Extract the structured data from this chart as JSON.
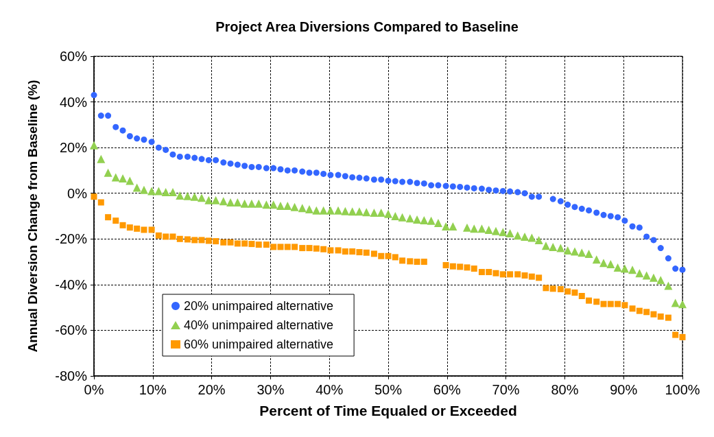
{
  "chart_data": {
    "type": "scatter",
    "title": "Project Area Diversions Compared to Baseline",
    "xlabel": "Percent of Time Equaled or Exceeded",
    "ylabel": "Annual Diversion Change from Baseline (%)",
    "xlim": [
      0,
      100
    ],
    "xticks": [
      {
        "value": 0,
        "label": "0%"
      },
      {
        "value": 10,
        "label": "10%"
      },
      {
        "value": 20,
        "label": "20%"
      },
      {
        "value": 30,
        "label": "30%"
      },
      {
        "value": 40,
        "label": "40%"
      },
      {
        "value": 50,
        "label": "50%"
      },
      {
        "value": 60,
        "label": "60%"
      },
      {
        "value": 70,
        "label": "70%"
      },
      {
        "value": 80,
        "label": "80%"
      },
      {
        "value": 90,
        "label": "90%"
      },
      {
        "value": 100,
        "label": "100%"
      }
    ],
    "ylim": [
      -80,
      60
    ],
    "yticks": [
      {
        "value": -80,
        "label": "-80%"
      },
      {
        "value": -60,
        "label": "-60%"
      },
      {
        "value": -40,
        "label": "-40%"
      },
      {
        "value": -20,
        "label": "-20%"
      },
      {
        "value": 0,
        "label": "0%"
      },
      {
        "value": 20,
        "label": "20%"
      },
      {
        "value": 40,
        "label": "40%"
      },
      {
        "value": 60,
        "label": "60%"
      }
    ],
    "grid": true,
    "legend": "bottom left",
    "series": [
      {
        "name": "20% unimpaired alternative",
        "color": "#3366ff",
        "marker": "circle",
        "x": [
          0,
          1.2,
          2.4,
          3.7,
          4.9,
          6.1,
          7.3,
          8.5,
          9.8,
          11,
          12.2,
          13.4,
          14.6,
          15.9,
          17.1,
          18.3,
          19.5,
          20.7,
          22,
          23.2,
          24.4,
          25.6,
          26.8,
          28,
          29.3,
          30.5,
          31.7,
          32.9,
          34.1,
          35.4,
          36.6,
          37.8,
          39,
          40.2,
          41.5,
          42.7,
          43.9,
          45.1,
          46.3,
          47.6,
          48.8,
          50,
          51.2,
          52.4,
          53.7,
          54.9,
          56.1,
          57.3,
          58.5,
          59.8,
          61,
          62.2,
          63.4,
          64.6,
          65.9,
          67.1,
          68.3,
          69.5,
          70.7,
          72,
          73.2,
          74.4,
          75.6,
          78,
          79.3,
          80.5,
          81.7,
          82.9,
          84.1,
          85.4,
          86.6,
          87.8,
          89,
          90.2,
          91.5,
          92.7,
          93.9,
          95.1,
          96.3,
          97.6,
          98.8,
          100
        ],
        "values": [
          43,
          34,
          34,
          29,
          27.5,
          25,
          24,
          23.5,
          22.5,
          20,
          19,
          17,
          16,
          16,
          15.5,
          15,
          14.5,
          14.5,
          13.5,
          13,
          12.5,
          12,
          11.5,
          11.5,
          11,
          11,
          10.5,
          10,
          10,
          9.5,
          9,
          9,
          8.5,
          8,
          8,
          7.5,
          7,
          6.8,
          6.5,
          6,
          6,
          5.5,
          5.3,
          5,
          5,
          4.5,
          4.3,
          3.5,
          3.5,
          3.2,
          3,
          2.8,
          2.5,
          2.2,
          2,
          1.5,
          1.2,
          1,
          0.8,
          0.5,
          0,
          -1.5,
          -1.5,
          -2.5,
          -3.5,
          -5,
          -6,
          -6.8,
          -7.5,
          -8.5,
          -9.5,
          -10,
          -10.5,
          -12,
          -14.5,
          -15,
          -19,
          -20.5,
          -24,
          -28.5,
          -33,
          -33.5
        ]
      },
      {
        "name": "40% unimpaired alternative",
        "color": "#92d050",
        "marker": "triangle",
        "x": [
          0,
          1.2,
          2.4,
          3.7,
          4.9,
          6.1,
          7.3,
          8.5,
          9.8,
          11,
          12.2,
          13.4,
          14.6,
          15.9,
          17.1,
          18.3,
          19.5,
          20.7,
          22,
          23.2,
          24.4,
          25.6,
          26.8,
          28,
          29.3,
          30.5,
          31.7,
          32.9,
          34.1,
          35.4,
          36.6,
          37.8,
          39,
          40.2,
          41.5,
          42.7,
          43.9,
          45.1,
          46.3,
          47.6,
          48.8,
          50,
          51.2,
          52.4,
          53.7,
          54.9,
          56.1,
          57.3,
          58.5,
          59.8,
          61,
          63.4,
          64.6,
          65.9,
          67.1,
          68.3,
          69.5,
          70.7,
          72,
          73.2,
          74.4,
          75.6,
          76.8,
          78,
          79.3,
          80.5,
          81.7,
          82.9,
          84.1,
          85.4,
          86.6,
          87.8,
          89,
          90.2,
          91.5,
          92.7,
          93.9,
          95.1,
          96.3,
          97.6,
          98.8,
          100
        ],
        "values": [
          21,
          15,
          9,
          7,
          6.5,
          5.5,
          2.5,
          1.5,
          1,
          1,
          0.5,
          0.5,
          -1,
          -1.2,
          -1.5,
          -2,
          -3,
          -3,
          -3.5,
          -4,
          -4,
          -4.5,
          -4.5,
          -4.5,
          -5,
          -5,
          -5.5,
          -5.5,
          -6,
          -6.5,
          -7,
          -7.5,
          -7.5,
          -7.5,
          -7.5,
          -7.8,
          -8,
          -8,
          -8.3,
          -8.5,
          -8.5,
          -9,
          -10,
          -10.5,
          -11,
          -11.5,
          -11.8,
          -12,
          -13,
          -14.5,
          -14.5,
          -15,
          -15.5,
          -15.5,
          -16,
          -16.5,
          -17,
          -17.5,
          -18.5,
          -19,
          -19.5,
          -20.5,
          -23,
          -23.5,
          -24,
          -25,
          -25.5,
          -26,
          -26.5,
          -29,
          -30.5,
          -31,
          -32.5,
          -33,
          -33.5,
          -35,
          -36,
          -37,
          -38,
          -40.5,
          -48,
          -48.5
        ]
      },
      {
        "name": "60% unimpaired alternative",
        "color": "#ff9900",
        "marker": "square",
        "x": [
          0,
          1.2,
          2.4,
          3.7,
          4.9,
          6.1,
          7.3,
          8.5,
          9.8,
          11,
          12.2,
          13.4,
          14.6,
          15.9,
          17.1,
          18.3,
          19.5,
          20.7,
          22,
          23.2,
          24.4,
          25.6,
          26.8,
          28,
          29.3,
          30.5,
          31.7,
          32.9,
          34.1,
          35.4,
          36.6,
          37.8,
          39,
          40.2,
          41.5,
          42.7,
          43.9,
          45.1,
          46.3,
          47.6,
          48.8,
          50,
          51.2,
          52.4,
          53.7,
          54.9,
          56.1,
          59.8,
          61,
          62.2,
          63.4,
          64.6,
          65.9,
          67.1,
          68.3,
          69.5,
          70.7,
          72,
          73.2,
          74.4,
          75.6,
          76.8,
          78,
          79.3,
          80.5,
          81.7,
          82.9,
          84.1,
          85.4,
          86.6,
          87.8,
          89,
          90.2,
          91.5,
          92.7,
          93.9,
          95.1,
          96.3,
          97.6,
          98.8,
          100
        ],
        "values": [
          -1.5,
          -4,
          -10.5,
          -12,
          -14,
          -15,
          -15.5,
          -16,
          -16,
          -18.5,
          -19,
          -19,
          -20,
          -20.2,
          -20.5,
          -20.5,
          -20.8,
          -21,
          -21.5,
          -21.5,
          -22,
          -22,
          -22.2,
          -22.5,
          -22.5,
          -23.5,
          -23.5,
          -23.5,
          -23.5,
          -24,
          -24,
          -24.2,
          -24.5,
          -25,
          -25,
          -25.5,
          -25.5,
          -25.8,
          -26,
          -26.5,
          -27.5,
          -27.5,
          -28,
          -29.5,
          -29.8,
          -30,
          -30,
          -31.5,
          -32,
          -32.2,
          -32.5,
          -33,
          -34.5,
          -34.5,
          -35,
          -35.5,
          -35.5,
          -35.5,
          -36,
          -36.5,
          -37,
          -41.5,
          -41.8,
          -42,
          -43,
          -43.5,
          -45,
          -47,
          -47.5,
          -48.5,
          -48.5,
          -48.5,
          -49,
          -50.5,
          -51.5,
          -52,
          -53,
          -54,
          -54.5,
          -62,
          -63
        ]
      }
    ]
  }
}
